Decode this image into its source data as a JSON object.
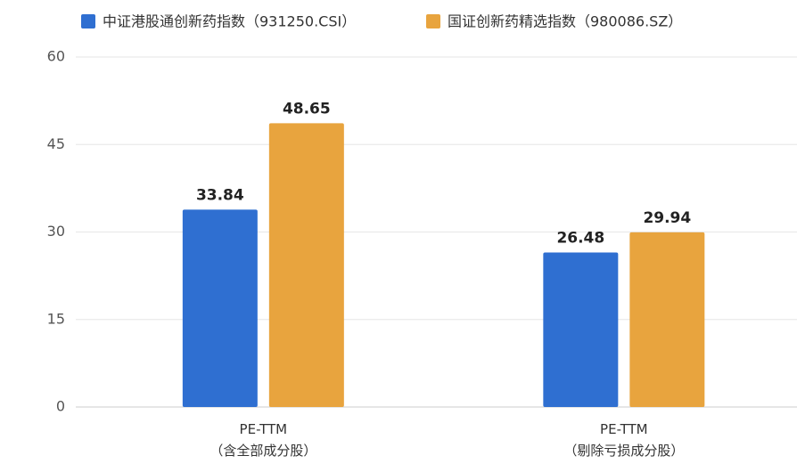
{
  "chart_data": {
    "type": "bar",
    "categories": [
      "PE-TTM\n（含全部成分股）",
      "PE-TTM\n（剔除亏损成分股）"
    ],
    "series": [
      {
        "name": "中证港股通创新药指数（931250.CSI）",
        "color": "#2f6fd1",
        "values": [
          33.84,
          26.48
        ]
      },
      {
        "name": "国证创新药精选指数（980086.SZ）",
        "color": "#e8a43e",
        "values": [
          48.65,
          29.94
        ]
      }
    ],
    "ylim": [
      0,
      60
    ],
    "yticks": [
      0,
      15,
      30,
      45,
      60
    ],
    "grid": true,
    "legend": "top"
  }
}
